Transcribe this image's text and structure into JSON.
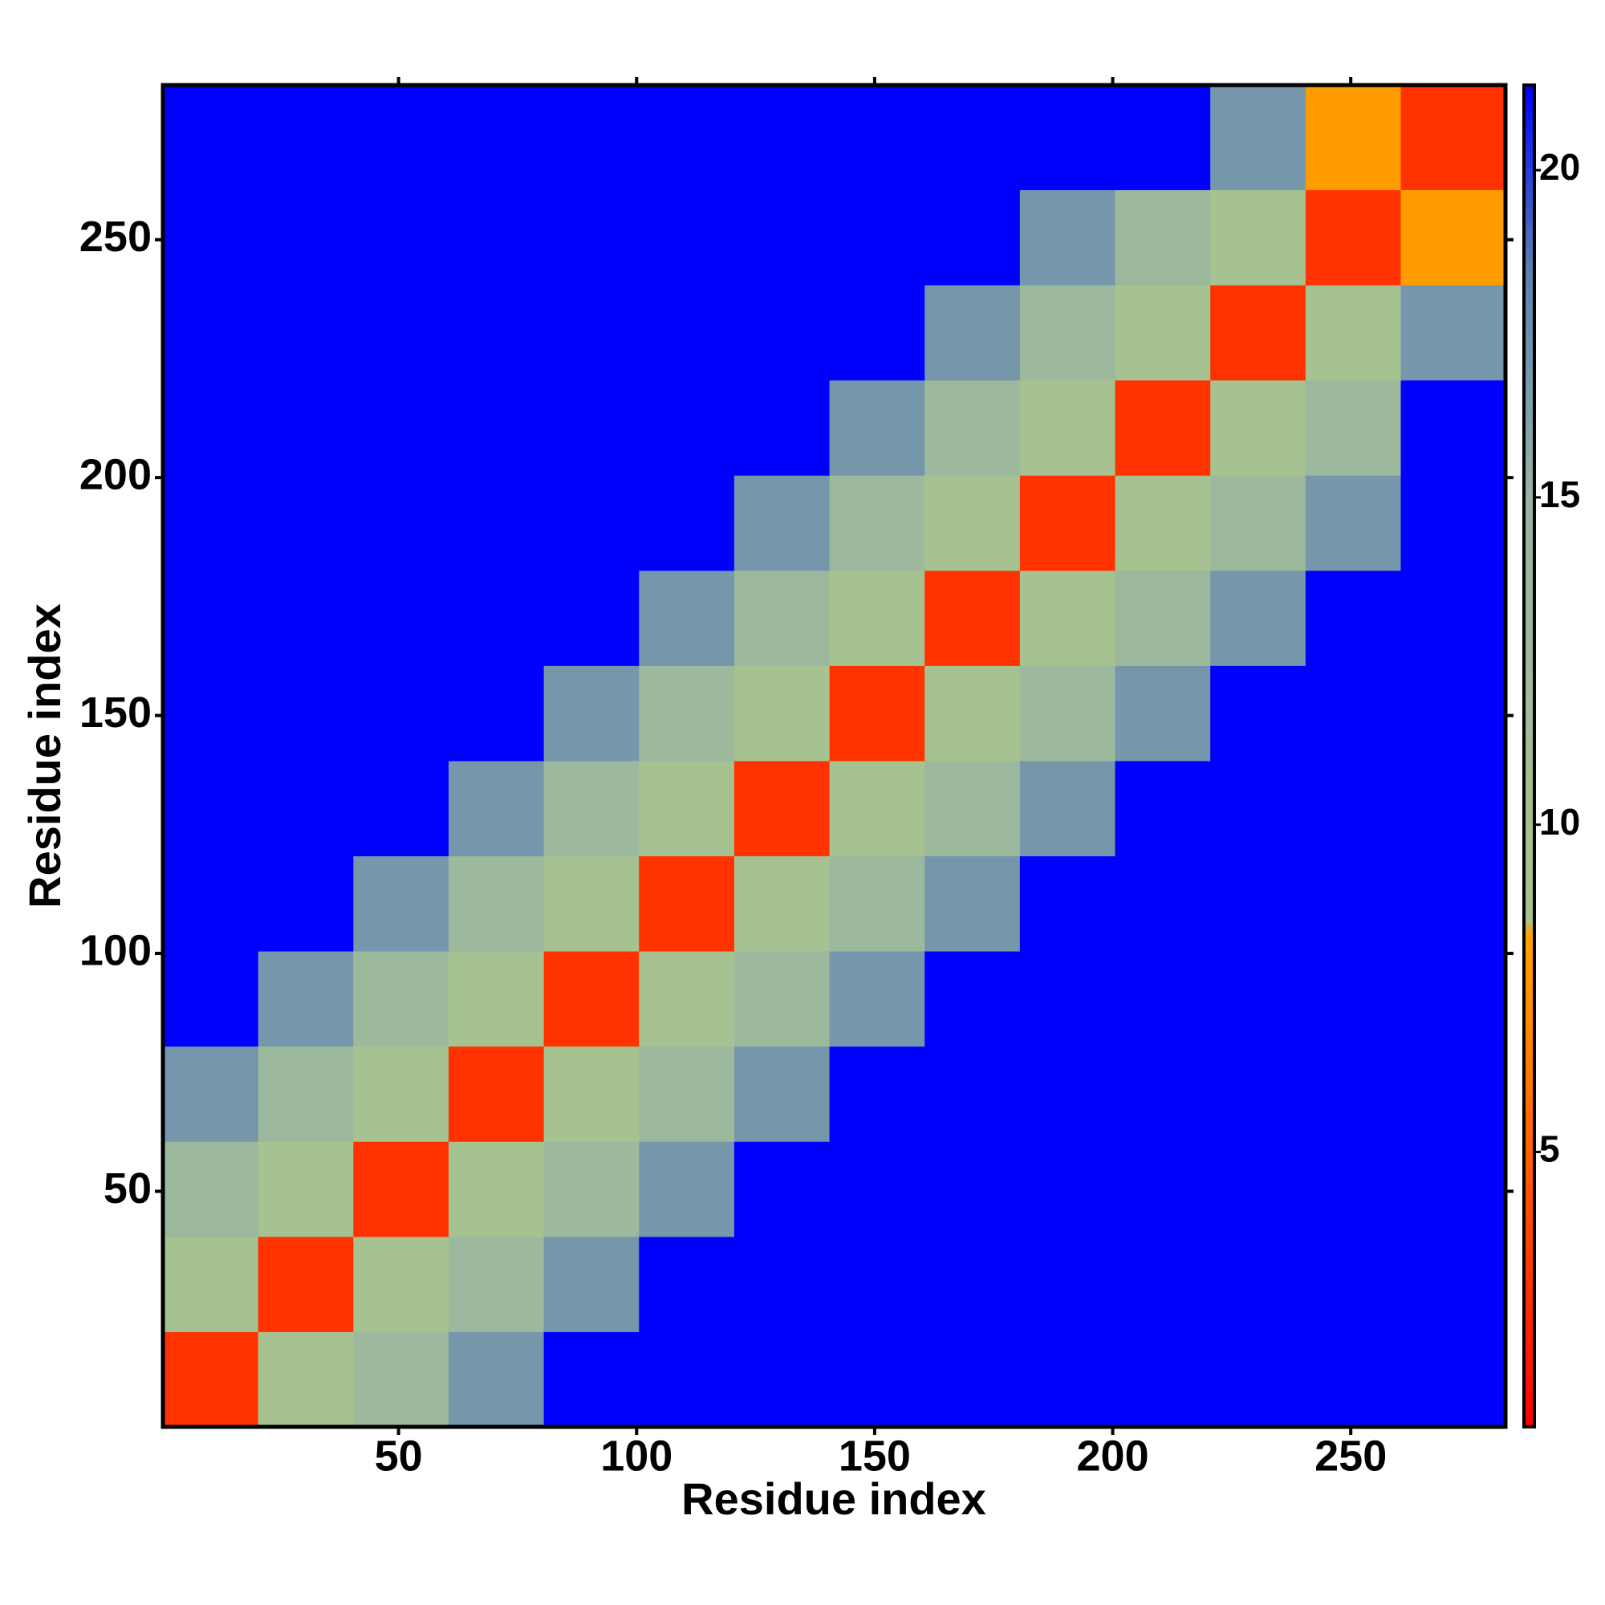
{
  "chart_data": {
    "type": "heatmap",
    "xlabel": "Residue index",
    "ylabel": "Residue index",
    "x_bins": [
      0.5,
      20.5,
      40.5,
      60.5,
      80.5,
      100.5,
      120.5,
      140.5,
      160.5,
      180.5,
      200.5,
      220.5,
      240.5,
      260.5,
      282.5
    ],
    "y_bins": [
      0.5,
      20.5,
      40.5,
      60.5,
      80.5,
      100.5,
      120.5,
      140.5,
      160.5,
      180.5,
      200.5,
      220.5,
      240.5,
      260.5,
      282.5
    ],
    "z": [
      [
        3,
        9.5,
        13,
        17,
        22,
        22,
        22,
        22,
        22,
        22,
        22,
        22,
        22,
        22
      ],
      [
        9.5,
        3,
        9.5,
        13,
        17,
        22,
        22,
        22,
        22,
        22,
        22,
        22,
        22,
        22
      ],
      [
        13,
        9.5,
        3,
        9.5,
        13,
        17,
        22,
        22,
        22,
        22,
        22,
        22,
        22,
        22
      ],
      [
        17,
        13,
        9.5,
        3,
        9.5,
        13,
        17,
        22,
        22,
        22,
        22,
        22,
        22,
        22
      ],
      [
        22,
        17,
        13,
        9.5,
        3,
        9.5,
        13,
        17,
        22,
        22,
        22,
        22,
        22,
        22
      ],
      [
        22,
        22,
        17,
        13,
        9.5,
        3,
        9.5,
        13,
        17,
        22,
        22,
        22,
        22,
        22
      ],
      [
        22,
        22,
        22,
        17,
        13,
        9.5,
        3,
        9.5,
        13,
        17,
        22,
        22,
        22,
        22
      ],
      [
        22,
        22,
        22,
        22,
        17,
        13,
        9.5,
        3,
        9.5,
        13,
        17,
        22,
        22,
        22
      ],
      [
        22,
        22,
        22,
        22,
        22,
        17,
        13,
        9.5,
        3,
        9.5,
        13,
        17,
        22,
        22
      ],
      [
        22,
        22,
        22,
        22,
        22,
        22,
        17,
        13,
        9.5,
        3,
        9.5,
        13,
        17,
        22
      ],
      [
        22,
        22,
        22,
        22,
        22,
        22,
        22,
        17,
        13,
        9.5,
        3,
        9.5,
        13,
        22
      ],
      [
        22,
        22,
        22,
        22,
        22,
        22,
        22,
        22,
        17,
        13,
        9.5,
        3,
        9.5,
        17
      ],
      [
        22,
        22,
        22,
        22,
        22,
        22,
        22,
        22,
        22,
        17,
        13,
        9.5,
        3,
        8
      ],
      [
        22,
        22,
        22,
        22,
        22,
        22,
        22,
        22,
        22,
        22,
        22,
        17,
        8,
        3
      ]
    ],
    "xlim": [
      0.5,
      282.5
    ],
    "ylim": [
      0.5,
      282.5
    ],
    "xticks": [
      50,
      100,
      150,
      200,
      250
    ],
    "yticks": [
      50,
      100,
      150,
      200,
      250
    ],
    "clim": [
      0.8,
      21.3
    ],
    "cticks": [
      5,
      10,
      15,
      20
    ],
    "colorscale": [
      [
        0.8,
        "#ff0000"
      ],
      [
        5,
        "#ff6000"
      ],
      [
        8.4,
        "#ffa500"
      ],
      [
        8.5,
        "#a8c48c"
      ],
      [
        15,
        "#98b4a4"
      ],
      [
        18.5,
        "#5a80b0"
      ],
      [
        21.3,
        "#0000ff"
      ]
    ]
  }
}
